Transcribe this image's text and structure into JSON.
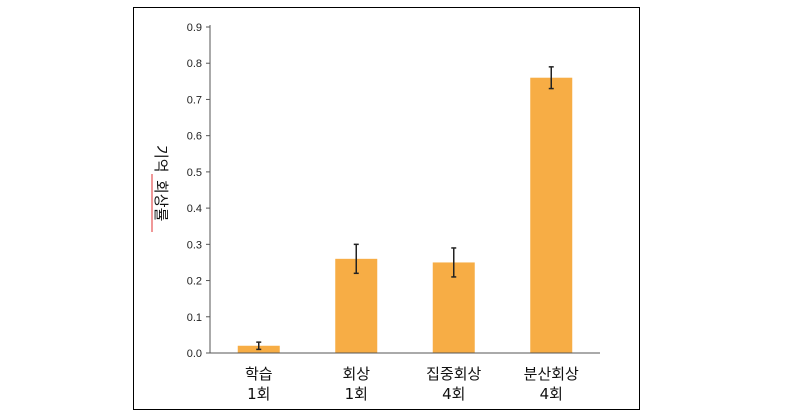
{
  "chart_data": {
    "type": "bar",
    "ylabel_parts": [
      "기억",
      "회상률"
    ],
    "ylim": [
      0,
      0.9
    ],
    "yticks": [
      "0.0",
      "0.1",
      "0.2",
      "0.3",
      "0.4",
      "0.5",
      "0.6",
      "0.7",
      "0.8",
      "0.9"
    ],
    "categories": [
      {
        "line1": "학습",
        "line2": "1회"
      },
      {
        "line1": "회상",
        "line2": "1회"
      },
      {
        "line1": "집중회상",
        "line2": "4회"
      },
      {
        "line1": "분산회상",
        "line2": "4회"
      }
    ],
    "values": [
      0.02,
      0.26,
      0.25,
      0.76
    ],
    "error_low": [
      0.01,
      0.22,
      0.21,
      0.73
    ],
    "error_high": [
      0.03,
      0.3,
      0.29,
      0.79
    ],
    "bar_color": "#F7AD45",
    "axis_color": "#555555",
    "error_color": "#222222",
    "ylabel_underline_color": "#E03030",
    "grid": false
  }
}
